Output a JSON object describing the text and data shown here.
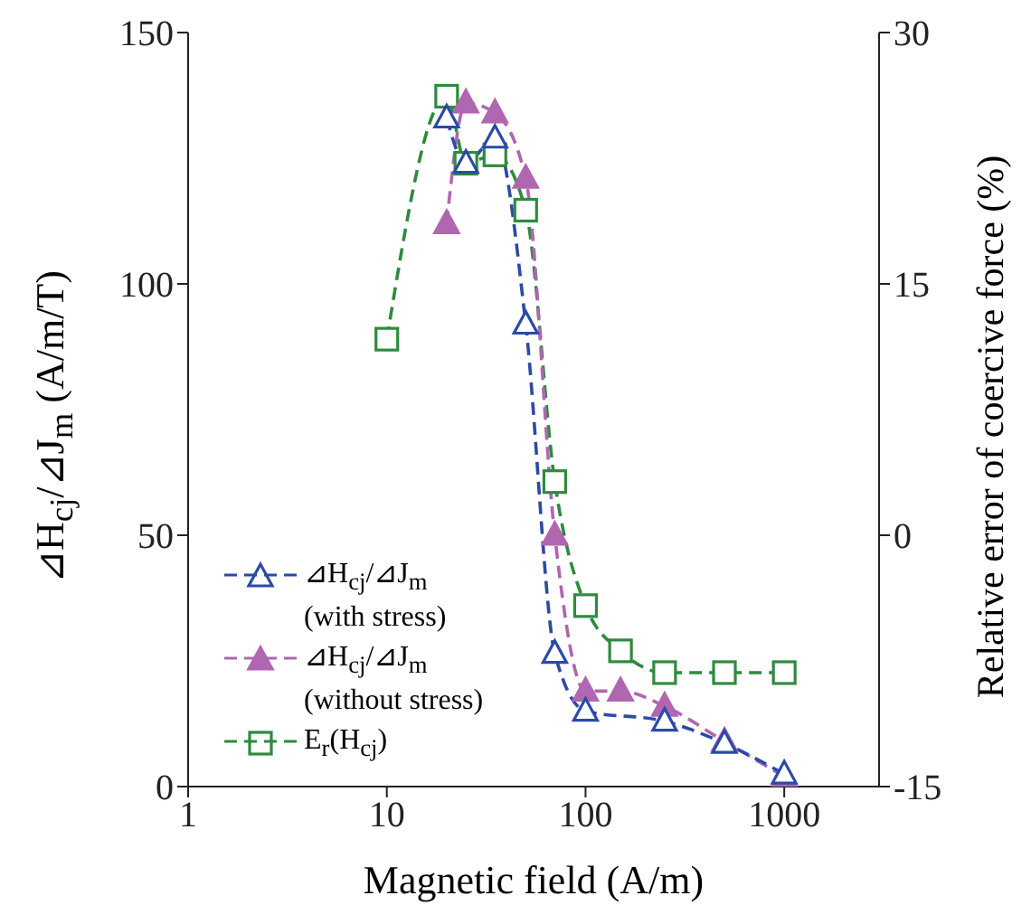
{
  "chart_data": {
    "type": "line",
    "xlabel": "Magnetic field (A/m)",
    "ylabel": "⊿H$_{cj}$/⊿J$_{m}$ (A/m/T)",
    "y2label": "Relative error of coercive force (%)",
    "log": "x",
    "xlim": [
      1,
      3000
    ],
    "xticks": [
      1,
      10,
      100,
      1000
    ],
    "ylim": [
      0,
      150
    ],
    "yticks": [
      0,
      50,
      100,
      150
    ],
    "y2lim": [
      -15,
      30
    ],
    "y2ticks": [
      -15,
      0,
      15,
      30
    ],
    "legend": "bottom left",
    "line_style": "dashed",
    "series": [
      {
        "name": "⊿H$_{cj}$/⊿J$_{m}$ (with stress)",
        "color": "#2b4aa8",
        "marker": "triangle",
        "x": [
          20,
          25,
          35,
          50,
          70,
          100,
          250,
          500,
          1000
        ],
        "values": [
          133,
          124,
          129,
          92,
          26.5,
          15,
          13,
          8.6,
          2.5
        ]
      },
      {
        "name": "⊿H$_{cj}$/⊿J$_{m}$ (without stress)",
        "color": "#b066b0",
        "marker": "triangle",
        "x": [
          20,
          25,
          35,
          50,
          70,
          100,
          150,
          250,
          500,
          1000
        ],
        "values": [
          112,
          136,
          134,
          121,
          50,
          19,
          19,
          16,
          9,
          2
        ]
      },
      {
        "name": "E$_{r}$(H$_{cj}$)",
        "color": "#2e8b3e",
        "marker": "square",
        "axis": "y2",
        "x": [
          10,
          20,
          25,
          35,
          50,
          70,
          100,
          150,
          250,
          500,
          1000
        ],
        "values": [
          11.7,
          26.2,
          22.2,
          22.7,
          19.4,
          3.2,
          -4.2,
          -6.9,
          -8.2,
          -8.2,
          -8.2
        ]
      }
    ]
  }
}
